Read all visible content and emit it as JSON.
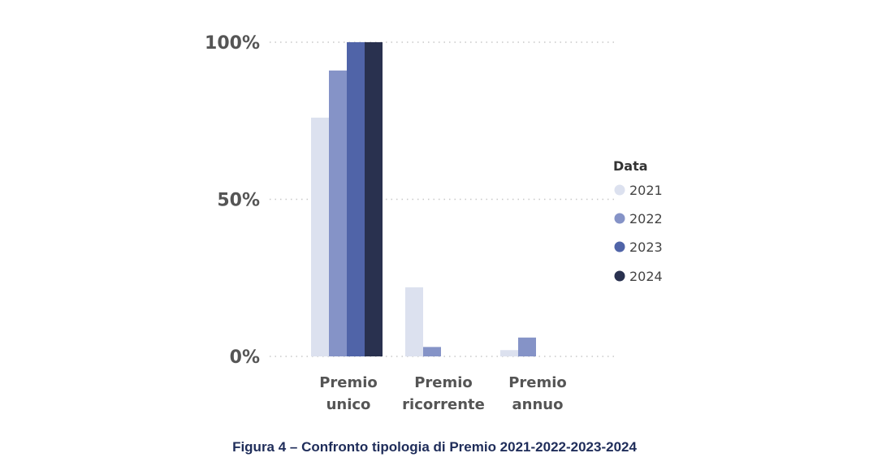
{
  "chart_data": {
    "type": "bar",
    "categories": [
      [
        "Premio",
        "unico"
      ],
      [
        "Premio",
        "ricorrente"
      ],
      [
        "Premio",
        "annuo"
      ]
    ],
    "series": [
      {
        "name": "2021",
        "values": [
          76,
          22,
          2
        ]
      },
      {
        "name": "2022",
        "values": [
          91,
          3,
          6
        ]
      },
      {
        "name": "2023",
        "values": [
          100,
          0,
          0
        ]
      },
      {
        "name": "2024",
        "values": [
          100,
          0,
          0
        ]
      }
    ],
    "yticks": [
      "0%",
      "50%",
      "100%"
    ],
    "ylim": [
      0,
      100
    ],
    "grid": "horizontal dotted",
    "legend": {
      "title": "Data",
      "placement": "right"
    },
    "colors": [
      "#dce1ef",
      "#8593c7",
      "#5064a8",
      "#29314f"
    ]
  },
  "caption": "Figura 4 – Confronto tipologia di Premio 2021-2022-2023-2024"
}
